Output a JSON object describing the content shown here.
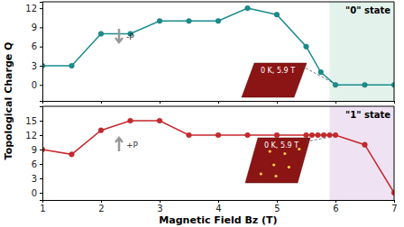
{
  "chart_data": [
    {
      "type": "line",
      "ylabel": "Topological Charge Q",
      "x": [
        1,
        1.5,
        2,
        2.5,
        3,
        3.5,
        4,
        4.5,
        5,
        5.5,
        5.75,
        6,
        6.5,
        7
      ],
      "series": [
        {
          "color": "#1a8c8c",
          "marker": "circle",
          "values": [
            3,
            3,
            8,
            8,
            10,
            10,
            10,
            12,
            11,
            6,
            2,
            0,
            0,
            0
          ]
        }
      ],
      "highlight": [
        5.9,
        7
      ],
      "highlight_color": "#e3f3ec",
      "annotations": [
        "\"0\" state",
        "-P",
        "0 K, 5.9 T"
      ],
      "xlim": [
        1,
        7
      ],
      "xticks": [
        1,
        2,
        3,
        4,
        5,
        6,
        7
      ],
      "ylim": [
        -2.5,
        13
      ],
      "yticks": [
        0,
        3,
        6,
        9,
        12
      ],
      "tick_labels": "y"
    },
    {
      "type": "line",
      "xlabel": "Magnetic Field Bz (T)",
      "x": [
        1,
        1.5,
        2,
        2.5,
        3,
        3.5,
        4,
        4.5,
        5,
        5.5,
        5.6,
        5.7,
        5.8,
        5.9,
        6,
        6.5,
        7
      ],
      "series": [
        {
          "color": "#c8282d",
          "marker": "circle",
          "values": [
            9,
            8,
            13,
            15,
            15,
            12,
            12,
            12,
            12,
            12,
            12,
            12,
            12,
            12,
            12,
            10,
            0
          ]
        }
      ],
      "highlight": [
        5.9,
        7
      ],
      "highlight_color": "#efe3f3",
      "annotations": [
        "\"1\" state",
        "+P",
        "0 K, 5.9 T"
      ],
      "xlim": [
        1,
        7
      ],
      "xticks": [
        1,
        2,
        3,
        4,
        5,
        6,
        7
      ],
      "ylim": [
        -1.5,
        18
      ],
      "yticks": [
        0,
        3,
        6,
        9,
        12,
        15
      ]
    }
  ]
}
